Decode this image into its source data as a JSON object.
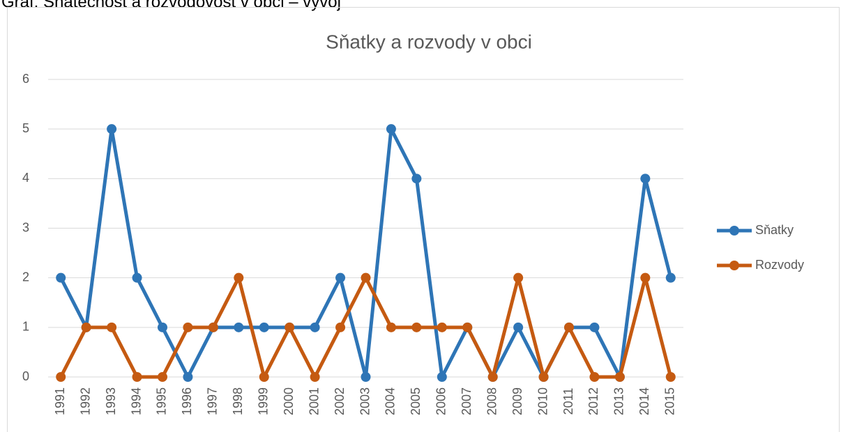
{
  "heading": "Graf: Sňatečnost a rozvodovost v obci – vývoj",
  "chart_data": {
    "type": "line",
    "title": "Sňatky a rozvody v obci",
    "categories": [
      "1991",
      "1992",
      "1993",
      "1994",
      "1995",
      "1996",
      "1997",
      "1998",
      "1999",
      "2000",
      "2001",
      "2002",
      "2003",
      "2004",
      "2005",
      "2006",
      "2007",
      "2008",
      "2009",
      "2010",
      "2011",
      "2012",
      "2013",
      "2014",
      "2015"
    ],
    "series": [
      {
        "name": "Sňatky",
        "color": "#2e75b6",
        "values": [
          2,
          1,
          5,
          2,
          1,
          0,
          1,
          1,
          1,
          1,
          1,
          2,
          0,
          5,
          4,
          0,
          1,
          0,
          1,
          0,
          1,
          1,
          0,
          4,
          2
        ]
      },
      {
        "name": "Rozvody",
        "color": "#c55a11",
        "values": [
          0,
          1,
          1,
          0,
          0,
          1,
          1,
          2,
          0,
          1,
          0,
          1,
          2,
          1,
          1,
          1,
          1,
          0,
          2,
          0,
          1,
          0,
          0,
          2,
          0
        ]
      }
    ],
    "ylim": [
      0,
      6
    ],
    "yticks": [
      0,
      1,
      2,
      3,
      4,
      5,
      6
    ],
    "grid": true,
    "legend": "right"
  }
}
